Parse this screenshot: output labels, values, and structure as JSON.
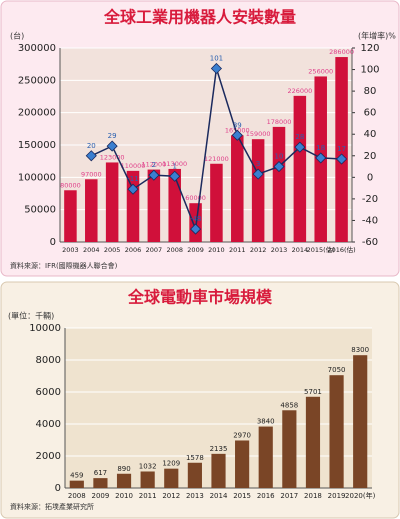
{
  "chart_data": [
    {
      "type": "combo",
      "title": "全球工業用機器人安裝數量",
      "y_label": "(台)",
      "y2_label": "(年增率)%",
      "source": "資料來源：IFR(國際機器人聯合會)",
      "categories": [
        "2003",
        "2004",
        "2005",
        "2006",
        "2007",
        "2008",
        "2009",
        "2010",
        "2011",
        "2012",
        "2013",
        "2014",
        "2015(估)",
        "2016(估)"
      ],
      "series": [
        {
          "color": "#d0103a",
          "label_color": "#e0408a",
          "values": [
            80000,
            97000,
            123000,
            110000,
            112000,
            113000,
            60000,
            121000,
            165000,
            159000,
            178000,
            226000,
            256000,
            286000
          ]
        },
        {
          "color": "#1b2a5e",
          "marker_color": "#3a7fd0",
          "label_color": "#2a60b0",
          "axis": "y2",
          "values": [
            null,
            20,
            29,
            -11,
            2,
            1,
            -48,
            101,
            39,
            3,
            10,
            28,
            18,
            17
          ]
        }
      ],
      "ylim": [
        0,
        300000
      ],
      "yticks": [
        0,
        50000,
        100000,
        150000,
        200000,
        250000,
        300000
      ],
      "y2lim": [
        -60,
        120
      ],
      "y2ticks": [
        -60,
        -40,
        -20,
        0,
        20,
        40,
        60,
        80,
        100,
        120
      ],
      "grid": true
    },
    {
      "type": "bar",
      "title": "全球電動車市場規模",
      "y_label": "(單位：千輛)",
      "source": "資料來源：拓墣產業研究所",
      "categories": [
        "2008",
        "2009",
        "2010",
        "2011",
        "2012",
        "2013",
        "2014",
        "2015",
        "2016",
        "2017",
        "2018",
        "2019",
        "2020(年)"
      ],
      "series": [
        {
          "color": "#7a4526",
          "label_color": "#222222",
          "values": [
            459,
            617,
            890,
            1032,
            1209,
            1578,
            2135,
            2970,
            3840,
            4858,
            5701,
            7050,
            8300
          ]
        }
      ],
      "ylim": [
        0,
        10000
      ],
      "yticks": [
        0,
        2000,
        4000,
        6000,
        8000,
        10000
      ],
      "grid": true
    }
  ]
}
